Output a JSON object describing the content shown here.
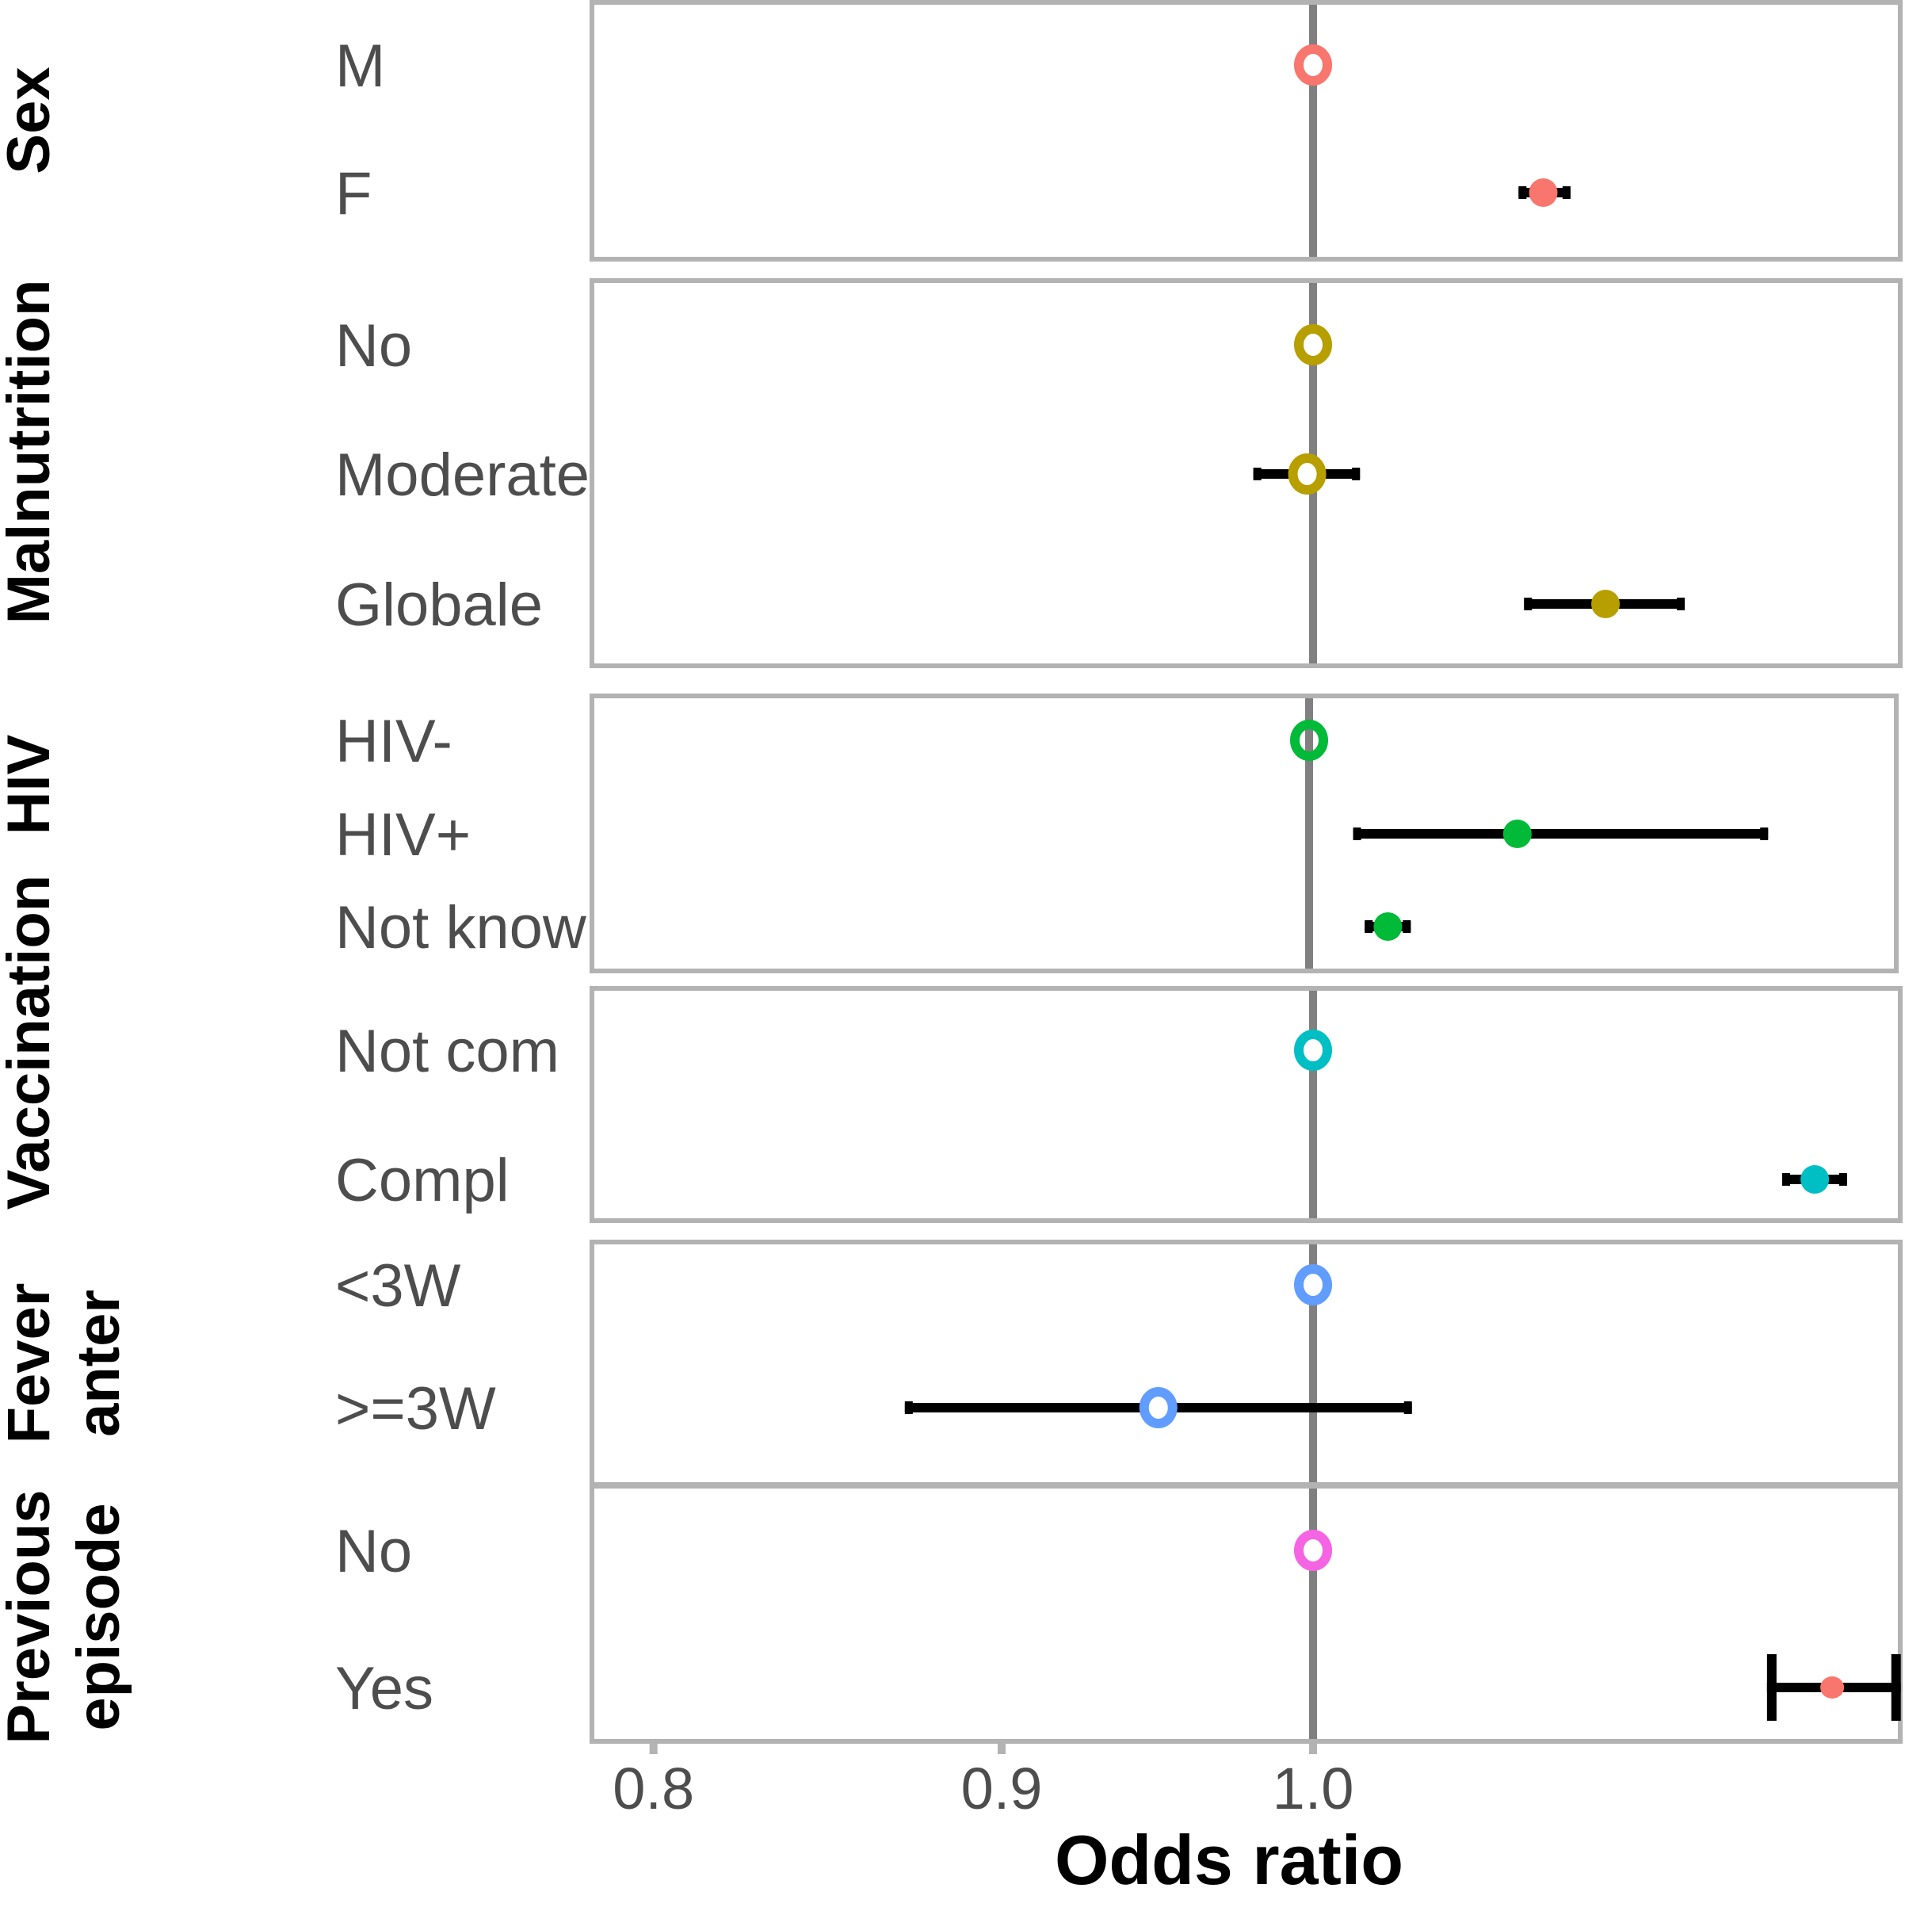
{
  "chart_data": {
    "type": "forest",
    "title": "",
    "xlabel": "Odds ratio",
    "ylabel": "",
    "x_scale": "log",
    "xlim": [
      0.783,
      1.22
    ],
    "x_ticks": [
      0.8,
      0.9,
      1.0
    ],
    "x_tick_labels": [
      "0.8",
      "0.9",
      "1.0"
    ],
    "reference_line": 1.0,
    "grid": false,
    "legend": "none",
    "panels": [
      {
        "name": "Sex",
        "strip_lines": [
          "Sex"
        ],
        "rows": [
          {
            "label": "M",
            "or": 1.0,
            "lo": null,
            "hi": null,
            "reference": true,
            "color": "#F8766D"
          },
          {
            "label": "F",
            "or": 1.081,
            "lo": 1.072,
            "hi": 1.091,
            "reference": false,
            "color": "#F8766D"
          }
        ]
      },
      {
        "name": "Malnutrition",
        "strip_lines": [
          "Malnutrition"
        ],
        "rows": [
          {
            "label": "No",
            "or": 1.0,
            "lo": null,
            "hi": null,
            "reference": true,
            "color": "#B79F00"
          },
          {
            "label": "Moderate",
            "or": 0.998,
            "lo": 0.98,
            "hi": 1.016,
            "reference": true,
            "color": "#B79F00"
          },
          {
            "label": "Globale",
            "or": 1.104,
            "lo": 1.074,
            "hi": 1.134,
            "reference": false,
            "color": "#B79F00"
          }
        ]
      },
      {
        "name": "HIV",
        "strip_lines": [
          "HIV"
        ],
        "rows": [
          {
            "label": "HIV-",
            "or": 1.0,
            "lo": null,
            "hi": null,
            "reference": true,
            "color": "#00BA38"
          },
          {
            "label": "HIV+",
            "or": 1.073,
            "lo": 1.015,
            "hi": 1.168,
            "reference": false,
            "color": "#00BA38"
          },
          {
            "label": "Not know",
            "or": 1.027,
            "lo": 1.019,
            "hi": 1.035,
            "reference": false,
            "color": "#00BA38"
          }
        ]
      },
      {
        "name": "Vaccination",
        "strip_lines": [
          "Vaccination"
        ],
        "rows": [
          {
            "label": "Not com",
            "or": 1.0,
            "lo": null,
            "hi": null,
            "reference": true,
            "color": "#00BFC4"
          },
          {
            "label": "Compl",
            "or": 1.185,
            "lo": 1.172,
            "hi": 1.198,
            "reference": false,
            "color": "#00BFC4"
          }
        ]
      },
      {
        "name": "Fever anter",
        "strip_lines": [
          "Fever",
          "anter"
        ],
        "rows": [
          {
            "label": "<3W",
            "or": 1.0,
            "lo": null,
            "hi": null,
            "reference": true,
            "color": "#619CFF"
          },
          {
            "label": ">=3W",
            "or": 0.949,
            "lo": 0.871,
            "hi": 1.034,
            "reference": true,
            "color": "#619CFF"
          }
        ]
      },
      {
        "name": "Previous episode",
        "strip_lines": [
          "Previous",
          "episode"
        ],
        "rows": [
          {
            "label": "No",
            "or": 1.0,
            "lo": null,
            "hi": null,
            "reference": true,
            "color": "#F564E3"
          },
          {
            "label": "Yes",
            "or": 1.192,
            "lo": 1.166,
            "hi": 1.22,
            "reference": false,
            "color": "#F8766D",
            "wide_caps": true
          }
        ]
      }
    ]
  },
  "colors": {
    "panel_border": "#b3b3b3",
    "reference_line": "#808080",
    "error_bar": "#000000",
    "row_label": "#4d4d4d"
  }
}
